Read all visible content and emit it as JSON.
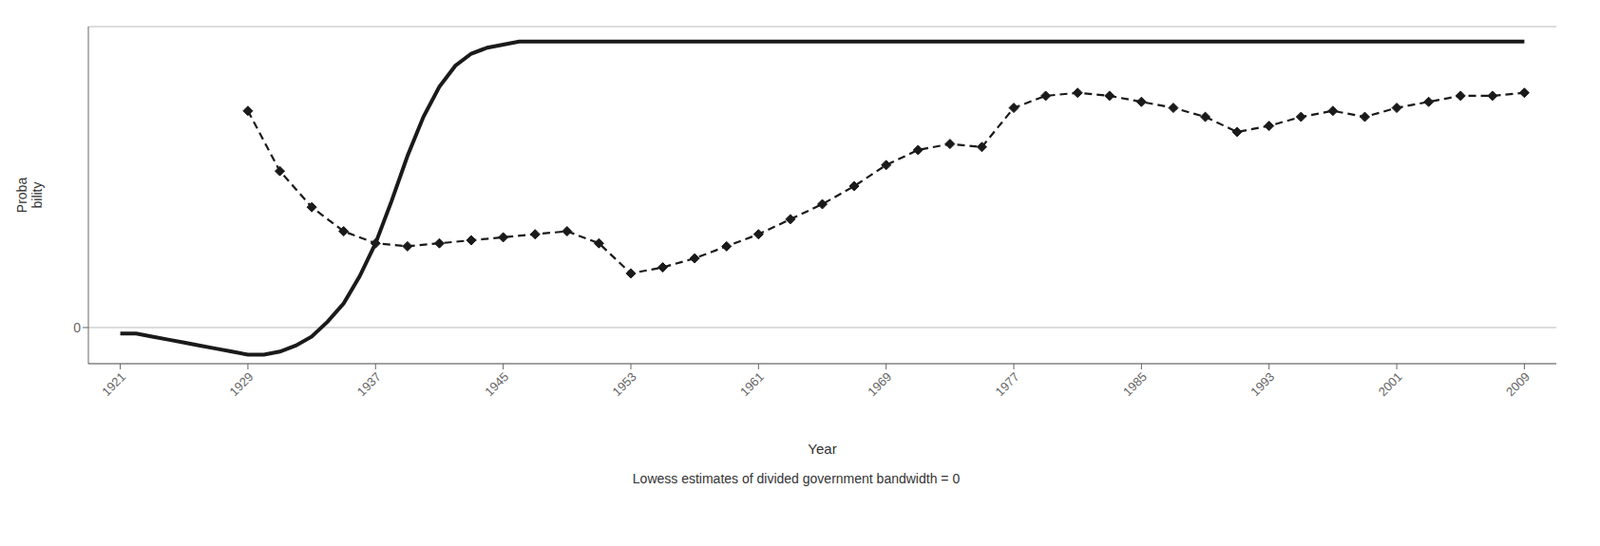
{
  "chart_data": {
    "type": "line",
    "xlabel": "Year",
    "ylabel": "Proba\nbility",
    "caption": "Lowess estimates of divided government bandwidth = 0",
    "xlim": [
      1919,
      2011
    ],
    "xticks": [
      1921,
      1929,
      1937,
      1945,
      1953,
      1961,
      1969,
      1977,
      1985,
      1993,
      2001,
      2009
    ],
    "ylim": [
      -0.12,
      1.0
    ],
    "yticks": [
      0
    ],
    "grid": "y",
    "series": [
      {
        "color": "#1a1a1a",
        "line_style": "solid",
        "marker": "none",
        "x": [
          1921,
          1922,
          1923,
          1924,
          1925,
          1926,
          1927,
          1928,
          1929,
          1930,
          1931,
          1932,
          1933,
          1934,
          1935,
          1936,
          1937,
          1938,
          1939,
          1940,
          1941,
          1942,
          1943,
          1944,
          1945,
          1946,
          1947,
          1948,
          1949,
          1950,
          1951,
          1952,
          1953,
          1954,
          1955,
          1956,
          1957,
          1958,
          1959,
          1960,
          1961,
          1962,
          1963,
          2009
        ],
        "values": [
          -0.02,
          -0.02,
          -0.03,
          -0.04,
          -0.05,
          -0.06,
          -0.07,
          -0.08,
          -0.09,
          -0.09,
          -0.08,
          -0.06,
          -0.03,
          0.02,
          0.08,
          0.17,
          0.28,
          0.42,
          0.57,
          0.7,
          0.8,
          0.87,
          0.91,
          0.93,
          0.94,
          0.95,
          0.95,
          0.95,
          0.95,
          0.95,
          0.95,
          0.95,
          0.95,
          0.95,
          0.95,
          0.95,
          0.95,
          0.95,
          0.95,
          0.95,
          0.95,
          0.95,
          0.95,
          0.95
        ]
      },
      {
        "color": "#1a1a1a",
        "line_style": "dashed",
        "marker": "diamond",
        "x": [
          1929,
          1931,
          1933,
          1935,
          1937,
          1939,
          1941,
          1943,
          1945,
          1947,
          1949,
          1951,
          1953,
          1955,
          1957,
          1959,
          1961,
          1963,
          1965,
          1967,
          1969,
          1971,
          1973,
          1975,
          1977,
          1979,
          1981,
          1983,
          1985,
          1987,
          1989,
          1991,
          1993,
          1995,
          1997,
          1999,
          2001,
          2003,
          2005,
          2007,
          2009
        ],
        "values": [
          0.72,
          0.52,
          0.4,
          0.32,
          0.28,
          0.27,
          0.28,
          0.29,
          0.3,
          0.31,
          0.32,
          0.28,
          0.18,
          0.2,
          0.23,
          0.27,
          0.31,
          0.36,
          0.41,
          0.47,
          0.54,
          0.59,
          0.61,
          0.6,
          0.73,
          0.77,
          0.78,
          0.77,
          0.75,
          0.73,
          0.7,
          0.65,
          0.67,
          0.7,
          0.72,
          0.7,
          0.73,
          0.75,
          0.77,
          0.77,
          0.78
        ]
      }
    ]
  }
}
